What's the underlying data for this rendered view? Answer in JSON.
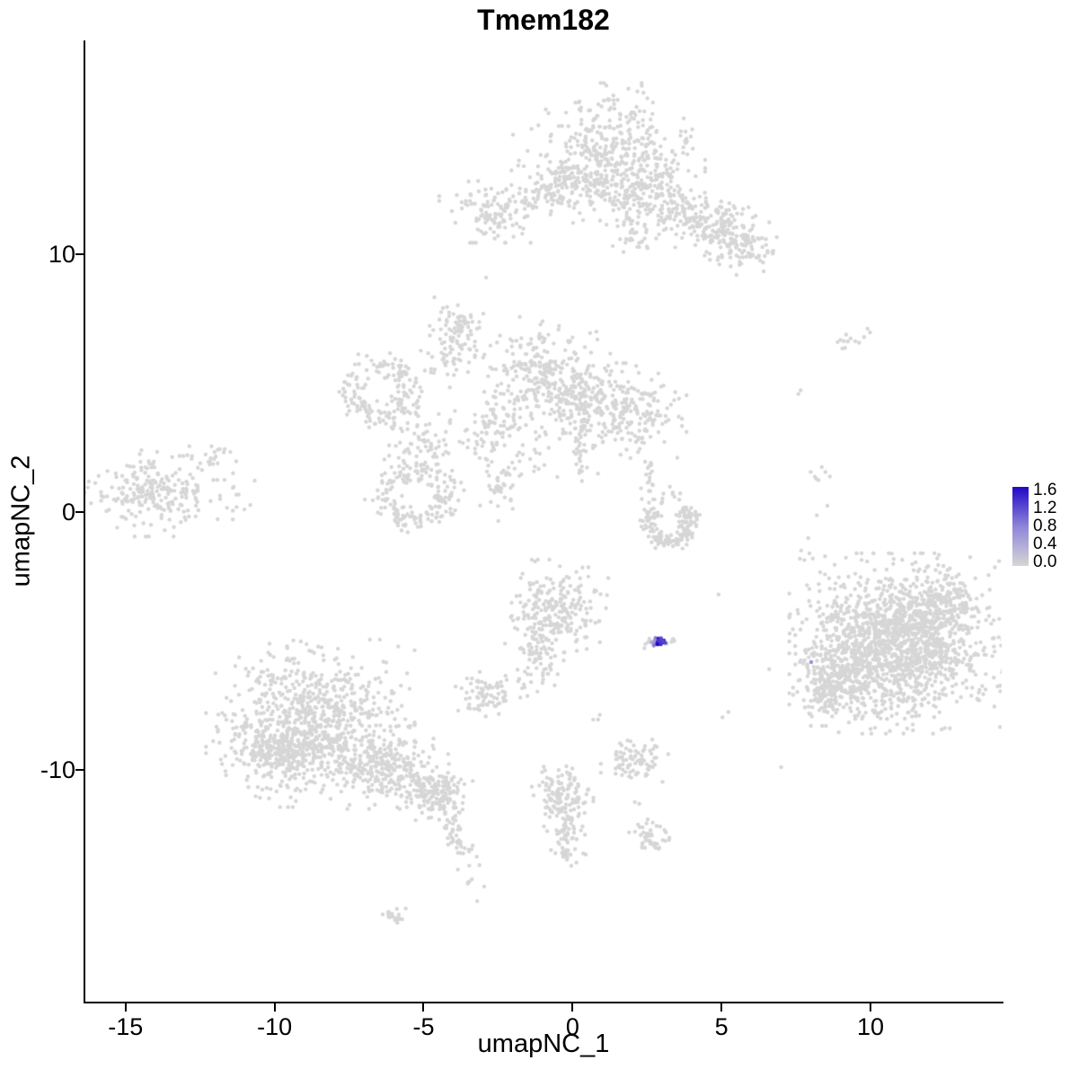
{
  "chart_data": {
    "type": "scatter",
    "title": "Tmem182",
    "xlabel": "umapNC_1",
    "ylabel": "umapNC_2",
    "x_ticks": [
      -15,
      -10,
      -5,
      0,
      5,
      10
    ],
    "y_ticks": [
      -10,
      0,
      10
    ],
    "xlim": [
      -16.35,
      14.4
    ],
    "ylim": [
      -19.0,
      18.3
    ],
    "grid": false,
    "background": "#FFFFFF",
    "axis_color": "#000000",
    "point_color_low": "#D6D6D6",
    "point_color_high": "#2108C7",
    "legend": {
      "position": "right",
      "ticks": [
        1.6,
        1.2,
        0.8,
        0.4,
        0.0
      ],
      "max": 1.6,
      "low_color": "#D6D6D6",
      "mid_color": "#8E85D8",
      "high_color": "#2108C7"
    },
    "points_encoding": "gaussian-clusters",
    "clusters": [
      {
        "type": "blob",
        "n": 420,
        "cx": 1.2,
        "cy": 13.9,
        "sx": 1.3,
        "sy": 1.1
      },
      {
        "type": "blob",
        "n": 120,
        "cx": 0.3,
        "cy": 12.7,
        "sx": 0.8,
        "sy": 0.55
      },
      {
        "type": "blob",
        "n": 150,
        "cx": 2.6,
        "cy": 12.4,
        "sx": 0.75,
        "sy": 0.65
      },
      {
        "type": "line",
        "n": 150,
        "x1": 3.2,
        "y1": 12.0,
        "x2": 5.7,
        "y2": 10.1,
        "j": 0.42
      },
      {
        "type": "blob",
        "n": 80,
        "cx": 5.1,
        "cy": 11.1,
        "sx": 0.6,
        "sy": 0.5
      },
      {
        "type": "blob",
        "n": 55,
        "cx": 6.0,
        "cy": 10.2,
        "sx": 0.45,
        "sy": 0.4
      },
      {
        "type": "blob",
        "n": 120,
        "cx": -2.6,
        "cy": 11.7,
        "sx": 0.75,
        "sy": 0.5
      },
      {
        "type": "line",
        "n": 35,
        "x1": -1.7,
        "y1": 11.9,
        "x2": -0.4,
        "y2": 12.8,
        "j": 0.3
      },
      {
        "type": "blob",
        "n": 30,
        "cx": 2.1,
        "cy": 10.5,
        "sx": 0.3,
        "sy": 0.45
      },
      {
        "type": "blob",
        "n": 300,
        "cx": -0.9,
        "cy": 5.2,
        "sx": 0.95,
        "sy": 0.95
      },
      {
        "type": "blob",
        "n": 220,
        "cx": 1.7,
        "cy": 3.9,
        "sx": 0.85,
        "sy": 0.75
      },
      {
        "type": "blob",
        "n": 70,
        "cx": 0.4,
        "cy": 4.5,
        "sx": 0.5,
        "sy": 0.5
      },
      {
        "type": "ring",
        "n": 160,
        "cx": -6.4,
        "cy": 4.7,
        "r": 1.0,
        "w": 0.5,
        "a0": 0,
        "a1": 360
      },
      {
        "type": "ring",
        "n": 180,
        "cx": -5.3,
        "cy": 0.6,
        "r": 1.05,
        "w": 0.5,
        "a0": 0,
        "a1": 360
      },
      {
        "type": "line",
        "n": 80,
        "x1": -5.7,
        "y1": 3.5,
        "x2": -4.6,
        "y2": 1.9,
        "j": 0.5
      },
      {
        "type": "line",
        "n": 55,
        "x1": -4.7,
        "y1": 5.5,
        "x2": -3.2,
        "y2": 6.9,
        "j": 0.35
      },
      {
        "type": "blob",
        "n": 55,
        "cx": -3.9,
        "cy": 7.3,
        "sx": 0.4,
        "sy": 0.45
      },
      {
        "type": "line",
        "n": 80,
        "x1": -3.6,
        "y1": 2.6,
        "x2": -1.9,
        "y2": 3.9,
        "j": 0.5
      },
      {
        "type": "line",
        "n": 60,
        "x1": -2.7,
        "y1": 0.4,
        "x2": -1.3,
        "y2": 2.2,
        "j": 0.45
      },
      {
        "type": "line",
        "n": 45,
        "x1": 0.1,
        "y1": 3.6,
        "x2": 0.4,
        "y2": 1.4,
        "j": 0.22
      },
      {
        "type": "blob",
        "n": 240,
        "cx": -13.9,
        "cy": 0.8,
        "sx": 1.0,
        "sy": 0.7
      },
      {
        "type": "blob",
        "n": 16,
        "cx": -12.1,
        "cy": 2.1,
        "sx": 0.35,
        "sy": 0.28
      },
      {
        "type": "line",
        "n": 9,
        "x1": -11.5,
        "y1": 0.3,
        "x2": -10.9,
        "y2": 1.5,
        "j": 0.25
      },
      {
        "type": "blob",
        "n": 13,
        "cx": 9.4,
        "cy": 6.6,
        "sx": 0.33,
        "sy": 0.27
      },
      {
        "type": "blob",
        "n": 2,
        "cx": 7.6,
        "cy": 4.6,
        "sx": 0.12,
        "sy": 0.1
      },
      {
        "type": "line",
        "n": 15,
        "x1": 8.4,
        "y1": 1.9,
        "x2": 7.9,
        "y2": -2.0,
        "j": 0.22
      },
      {
        "type": "blob",
        "n": 1500,
        "cx": 10.9,
        "cy": -5.1,
        "sx": 1.45,
        "sy": 1.4
      },
      {
        "type": "blob",
        "n": 220,
        "cx": 9.1,
        "cy": -6.3,
        "sx": 0.65,
        "sy": 0.75
      },
      {
        "type": "blob",
        "n": 130,
        "cx": 12.5,
        "cy": -3.5,
        "sx": 0.6,
        "sy": 0.5
      },
      {
        "type": "blob",
        "n": 90,
        "cx": 8.4,
        "cy": -6.8,
        "sx": 0.4,
        "sy": 0.6
      },
      {
        "type": "blob",
        "n": 240,
        "cx": -0.6,
        "cy": -3.9,
        "sx": 0.72,
        "sy": 0.82
      },
      {
        "type": "line",
        "n": 65,
        "x1": -0.9,
        "y1": -5.0,
        "x2": -1.2,
        "y2": -6.6,
        "j": 0.33
      },
      {
        "type": "blob",
        "n": 75,
        "cx": -2.8,
        "cy": -7.1,
        "sx": 0.45,
        "sy": 0.38
      },
      {
        "type": "blob",
        "n": 7,
        "cx": -2.0,
        "cy": -6.7,
        "sx": 0.25,
        "sy": 0.2
      },
      {
        "type": "blob",
        "n": 85,
        "cx": 2.2,
        "cy": -9.7,
        "sx": 0.5,
        "sy": 0.38
      },
      {
        "type": "blob",
        "n": 3,
        "cx": 0.9,
        "cy": -7.9,
        "sx": 0.15,
        "sy": 0.12
      },
      {
        "type": "blob",
        "n": 2,
        "cx": 5.1,
        "cy": -7.8,
        "sx": 0.1,
        "sy": 0.1
      },
      {
        "type": "blob",
        "n": 850,
        "cx": -8.8,
        "cy": -8.2,
        "sx": 1.4,
        "sy": 1.3
      },
      {
        "type": "blob",
        "n": 160,
        "cx": -10.0,
        "cy": -9.3,
        "sx": 0.65,
        "sy": 0.55
      },
      {
        "type": "blob",
        "n": 260,
        "cx": -6.3,
        "cy": -9.9,
        "sx": 0.85,
        "sy": 0.65
      },
      {
        "type": "blob",
        "n": 160,
        "cx": -4.6,
        "cy": -10.9,
        "sx": 0.5,
        "sy": 0.45
      },
      {
        "type": "line",
        "n": 50,
        "x1": -4.3,
        "y1": -11.7,
        "x2": -3.5,
        "y2": -13.4,
        "j": 0.2
      },
      {
        "type": "blob",
        "n": 5,
        "cx": -3.4,
        "cy": -14.3,
        "sx": 0.18,
        "sy": 0.18
      },
      {
        "type": "blob",
        "n": 20,
        "cx": -6.0,
        "cy": -15.7,
        "sx": 0.28,
        "sy": 0.18
      },
      {
        "type": "blob",
        "n": 110,
        "cx": -0.35,
        "cy": -10.9,
        "sx": 0.42,
        "sy": 0.52
      },
      {
        "type": "line",
        "n": 85,
        "x1": -0.25,
        "y1": -11.6,
        "x2": -0.1,
        "y2": -13.4,
        "j": 0.28
      },
      {
        "type": "blob",
        "n": 42,
        "cx": 2.6,
        "cy": -12.6,
        "sx": 0.33,
        "sy": 0.27
      },
      {
        "type": "blob",
        "n": 2,
        "cx": 2.2,
        "cy": -11.4,
        "sx": 0.1,
        "sy": 0.1
      },
      {
        "type": "ring",
        "n": 130,
        "cx": 3.25,
        "cy": -0.45,
        "r": 0.7,
        "w": 0.3,
        "a0": 130,
        "a1": 415
      },
      {
        "type": "blob",
        "n": 28,
        "cx": 3.9,
        "cy": -0.2,
        "sx": 0.22,
        "sy": 0.28
      },
      {
        "type": "line",
        "n": 22,
        "x1": 2.55,
        "y1": 1.9,
        "x2": 2.75,
        "y2": 0.3,
        "j": 0.16
      },
      {
        "type": "blob",
        "n": 6,
        "cx": 3.3,
        "cy": 0.7,
        "sx": 0.18,
        "sy": 0.18
      },
      {
        "type": "blob",
        "n": 5,
        "cx": 3.3,
        "cy": -5.0,
        "sx": 0.12,
        "sy": 0.08
      },
      {
        "type": "blob",
        "n": 6,
        "cx": 2.55,
        "cy": -5.1,
        "sx": 0.12,
        "sy": 0.08
      },
      {
        "type": "blob",
        "n": 9,
        "cx": 2.72,
        "cy": -5.05,
        "sx": 0.1,
        "sy": 0.07,
        "expr": [
          0.3,
          0.8
        ]
      },
      {
        "type": "blob",
        "n": 20,
        "cx": 2.93,
        "cy": -5.02,
        "sx": 0.08,
        "sy": 0.07,
        "expr": [
          1.0,
          1.7
        ]
      },
      {
        "type": "blob",
        "n": 1,
        "cx": 8.0,
        "cy": -5.8,
        "sx": 0.01,
        "sy": 0.01,
        "expr": [
          0.55,
          0.55
        ]
      }
    ],
    "singles": [
      [
        -2.9,
        9.1
      ],
      [
        6.6,
        -6.1
      ],
      [
        4.9,
        -3.2
      ],
      [
        0.8,
        7.0
      ],
      [
        7.0,
        -9.9
      ],
      [
        -3.2,
        -15.1
      ]
    ]
  }
}
